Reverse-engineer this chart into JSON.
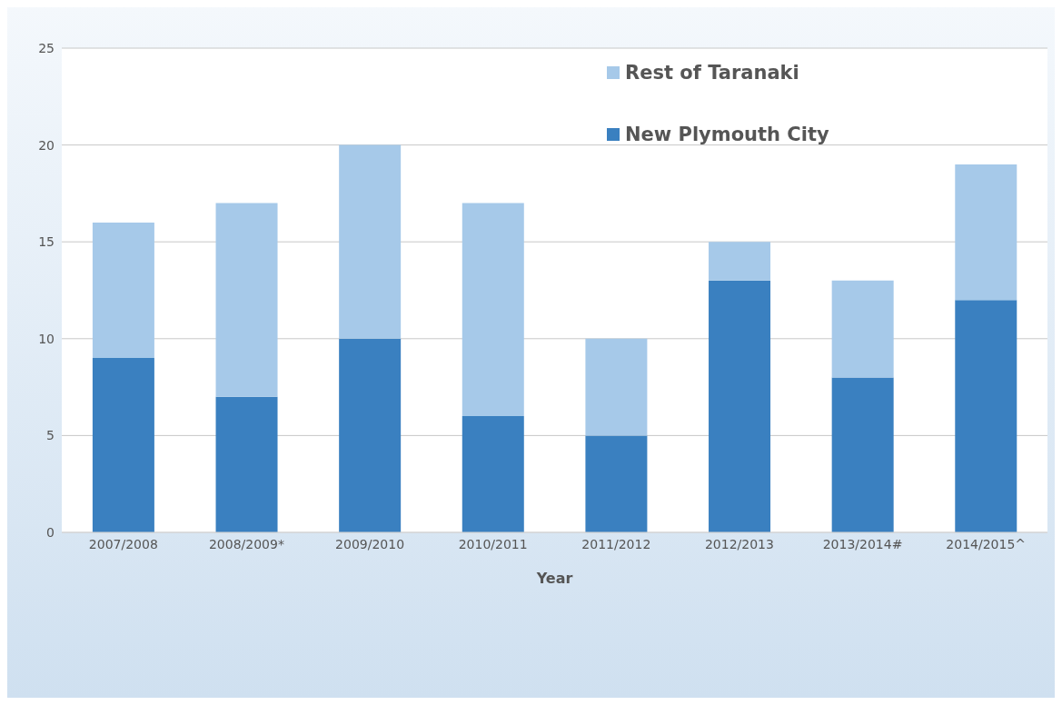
{
  "chart_data": {
    "type": "bar",
    "xlabel": "Year",
    "stacked": true,
    "categories": [
      "2007/2008",
      "2008/2009*",
      "2009/2010",
      "2010/2011",
      "2011/2012",
      "2012/2013",
      "2013/2014#",
      "2014/2015^"
    ],
    "series": [
      {
        "name": "New Plymouth City",
        "color": "#3a80c0",
        "values": [
          9,
          7,
          10,
          6,
          5,
          13,
          8,
          12
        ]
      },
      {
        "name": "Rest of Taranaki",
        "color": "#a6c9e9",
        "values": [
          7,
          10,
          10,
          11,
          5,
          2,
          5,
          7
        ]
      }
    ],
    "ylim": [
      0,
      25
    ],
    "yticks": [
      0,
      5,
      10,
      15,
      20,
      25
    ],
    "grid": "y",
    "legend": "top right"
  }
}
